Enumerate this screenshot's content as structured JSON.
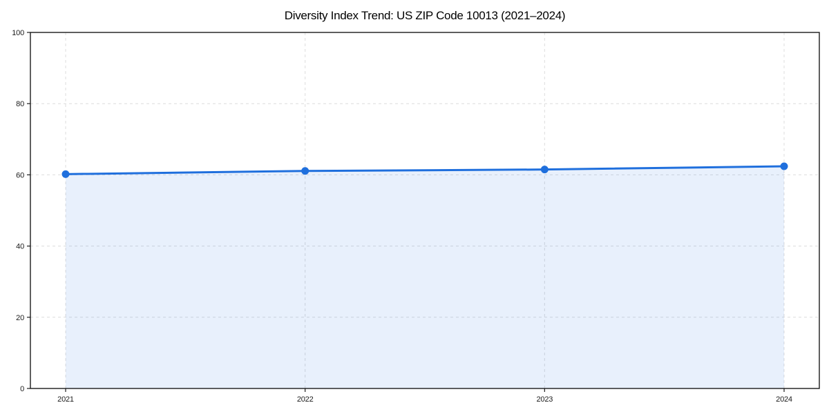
{
  "chart": {
    "title": "Diversity Index Trend: US ZIP Code 10013 (2021–2024)"
  },
  "chart_data": {
    "type": "line",
    "title": "Diversity Index Trend: US ZIP Code 10013 (2021–2024)",
    "x": [
      2021,
      2022,
      2023,
      2024
    ],
    "xtick_labels": [
      "2021",
      "2022",
      "2023",
      "2024"
    ],
    "series": [
      {
        "name": "Diversity Index",
        "values": [
          60.2,
          61.1,
          61.5,
          62.4
        ]
      }
    ],
    "xlabel": "",
    "ylabel": "",
    "ylim": [
      0,
      100
    ],
    "yticks": [
      0,
      20,
      40,
      60,
      80,
      100
    ],
    "grid": true,
    "grid_style": "dashed",
    "legend_position": "none",
    "area_fill": true,
    "marker": "circle",
    "colors": {
      "line": "#1f6fdd",
      "marker": "#1f6fdd",
      "area_fill": "rgba(31,111,221,0.10)",
      "grid": "#dcdcdc",
      "spine": "#1a1a1a",
      "tick_label": "#1a1a1a",
      "title": "#000000",
      "background": "#ffffff"
    }
  }
}
